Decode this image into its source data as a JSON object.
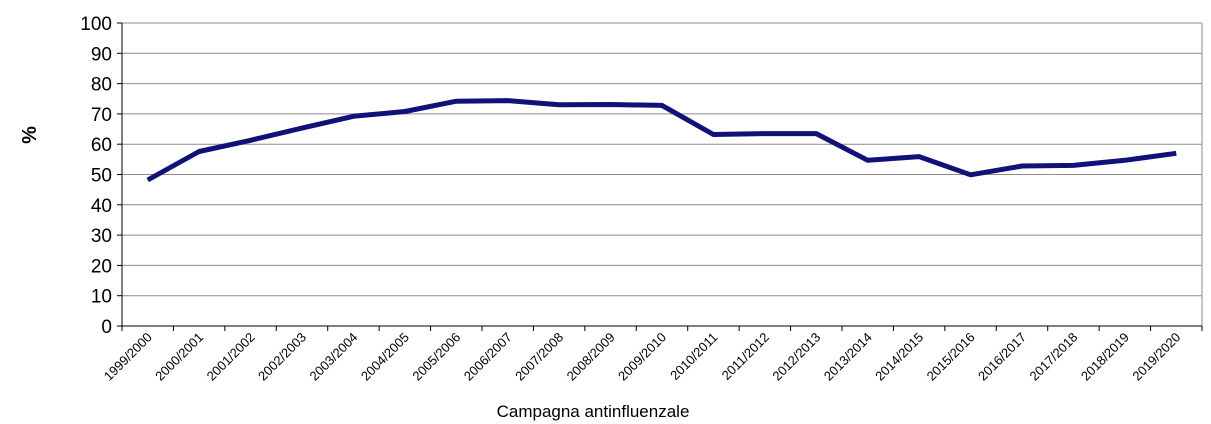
{
  "chart_data": {
    "type": "line",
    "xlabel": "Campagna antinfluenzale",
    "ylabel": "%",
    "ylim": [
      0,
      100
    ],
    "yticks": [
      "0",
      "10",
      "20",
      "30",
      "40",
      "50",
      "60",
      "70",
      "80",
      "90",
      "100"
    ],
    "grid": "horizontal",
    "legend": "none",
    "line_color": "#11117a",
    "categories": [
      "1999/2000",
      "2000/2001",
      "2001/2002",
      "2002/2003",
      "2003/2004",
      "2004/2005",
      "2005/2006",
      "2006/2007",
      "2007/2008",
      "2008/2009",
      "2009/2010",
      "2010/2011",
      "2011/2012",
      "2012/2013",
      "2013/2014",
      "2014/2015",
      "2015/2016",
      "2016/2017",
      "2017/2018",
      "2018/2019",
      "2019/2020"
    ],
    "series": [
      {
        "values": [
          48.2,
          57.6,
          61.3,
          65.3,
          69.2,
          70.8,
          74.2,
          74.4,
          73.0,
          73.1,
          72.8,
          63.2,
          63.5,
          63.5,
          54.7,
          55.9,
          49.9,
          52.8,
          53.0,
          54.7,
          57.0
        ]
      }
    ]
  }
}
